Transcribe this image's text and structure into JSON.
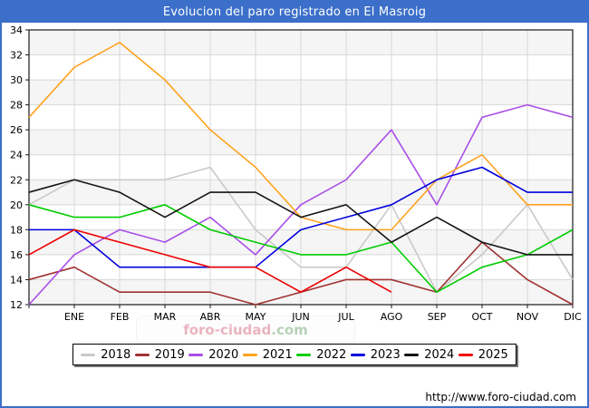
{
  "window": {
    "title": "Evolucion del paro registrado en El Masroig"
  },
  "footer": {
    "url": "http://www.foro-ciudad.com"
  },
  "watermark": {
    "text_main": "foro-ciudad",
    "text_suffix": ".com"
  },
  "chart_data": {
    "type": "line",
    "title": "Evolucion del paro registrado en El Masroig",
    "xlabel": "",
    "ylabel": "",
    "months": [
      "ENE",
      "FEB",
      "MAR",
      "ABR",
      "MAY",
      "JUN",
      "JUL",
      "AGO",
      "SEP",
      "OCT",
      "NOV",
      "DIC"
    ],
    "x_note": "each series has 13 points: an unlabeled start point at the y-axis followed by ENE..DIC; 2025 ends at AGO",
    "ylim": [
      12,
      34
    ],
    "yticks": [
      12,
      14,
      16,
      18,
      20,
      22,
      24,
      26,
      28,
      30,
      32,
      34
    ],
    "grid": true,
    "legend_position": "bottom",
    "series": [
      {
        "name": "2018",
        "color": "#c9c9c9",
        "values": [
          20,
          22,
          22,
          22,
          23,
          18,
          15,
          15,
          20,
          13,
          16,
          20,
          14
        ]
      },
      {
        "name": "2019",
        "color": "#a03232",
        "values": [
          14,
          15,
          13,
          13,
          13,
          12,
          13,
          14,
          14,
          13,
          17,
          14,
          12
        ]
      },
      {
        "name": "2020",
        "color": "#a84ee8",
        "values": [
          12,
          16,
          18,
          17,
          19,
          16,
          20,
          22,
          26,
          20,
          27,
          28,
          27
        ]
      },
      {
        "name": "2021",
        "color": "#ffa21f",
        "values": [
          27,
          31,
          33,
          30,
          26,
          23,
          19,
          18,
          18,
          22,
          24,
          20,
          20
        ]
      },
      {
        "name": "2022",
        "color": "#00cc00",
        "values": [
          20,
          19,
          19,
          20,
          18,
          17,
          16,
          16,
          17,
          13,
          15,
          16,
          18
        ]
      },
      {
        "name": "2023",
        "color": "#0000dd",
        "values": [
          18,
          18,
          15,
          15,
          15,
          15,
          18,
          19,
          20,
          22,
          23,
          21,
          21
        ]
      },
      {
        "name": "2024",
        "color": "#141414",
        "values": [
          21,
          22,
          21,
          19,
          21,
          21,
          19,
          20,
          17,
          19,
          17,
          16,
          16
        ]
      },
      {
        "name": "2025",
        "color": "#ee0000",
        "values": [
          16,
          18,
          17,
          16,
          15,
          15,
          13,
          15,
          13
        ]
      }
    ]
  }
}
